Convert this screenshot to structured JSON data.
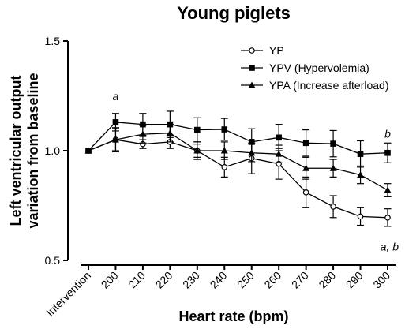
{
  "chart_data": {
    "type": "line",
    "title": "Young piglets",
    "xlabel": "Heart rate (bpm)",
    "ylabel": "Left ventricular output variation from baseline",
    "categories": [
      "Intervention",
      "200",
      "210",
      "220",
      "230",
      "240",
      "250",
      "260",
      "270",
      "280",
      "290",
      "300"
    ],
    "ylim": [
      0.5,
      1.5
    ],
    "yticks": [
      "0.5",
      "1.0",
      "1.5"
    ],
    "grid": false,
    "legend_position": "top-right",
    "series": [
      {
        "name": "YP",
        "marker": "circle-open",
        "values": [
          1.0,
          1.05,
          1.03,
          1.04,
          1.0,
          0.925,
          0.965,
          0.94,
          0.81,
          0.745,
          0.7,
          0.695
        ],
        "errors": [
          0,
          0.05,
          0.02,
          0.03,
          0.03,
          0.045,
          0.07,
          0.07,
          0.07,
          0.05,
          0.04,
          0.04
        ]
      },
      {
        "name": "YPV (Hypervolemia)",
        "marker": "square-filled",
        "values": [
          1.0,
          1.13,
          1.12,
          1.12,
          1.095,
          1.097,
          1.04,
          1.06,
          1.035,
          1.032,
          0.985,
          0.99
        ],
        "errors": [
          0,
          0.04,
          0.05,
          0.06,
          0.055,
          0.05,
          0.06,
          0.06,
          0.06,
          0.06,
          0.06,
          0.045
        ]
      },
      {
        "name": "YPA (Increase afterload)",
        "marker": "triangle-filled",
        "values": [
          1.0,
          1.05,
          1.075,
          1.08,
          1.0,
          1.0,
          0.99,
          0.985,
          0.92,
          0.92,
          0.89,
          0.82
        ],
        "errors": [
          0,
          0.055,
          0.04,
          0.04,
          0.04,
          0.04,
          0.04,
          0.04,
          0.05,
          0.04,
          0.04,
          0.03
        ]
      }
    ],
    "annotations": [
      {
        "text": "a",
        "category": "200",
        "y": 1.23
      },
      {
        "text": "b",
        "category": "300",
        "y": 1.06
      },
      {
        "text": "a, b",
        "category": "300",
        "y": 0.545
      }
    ]
  }
}
